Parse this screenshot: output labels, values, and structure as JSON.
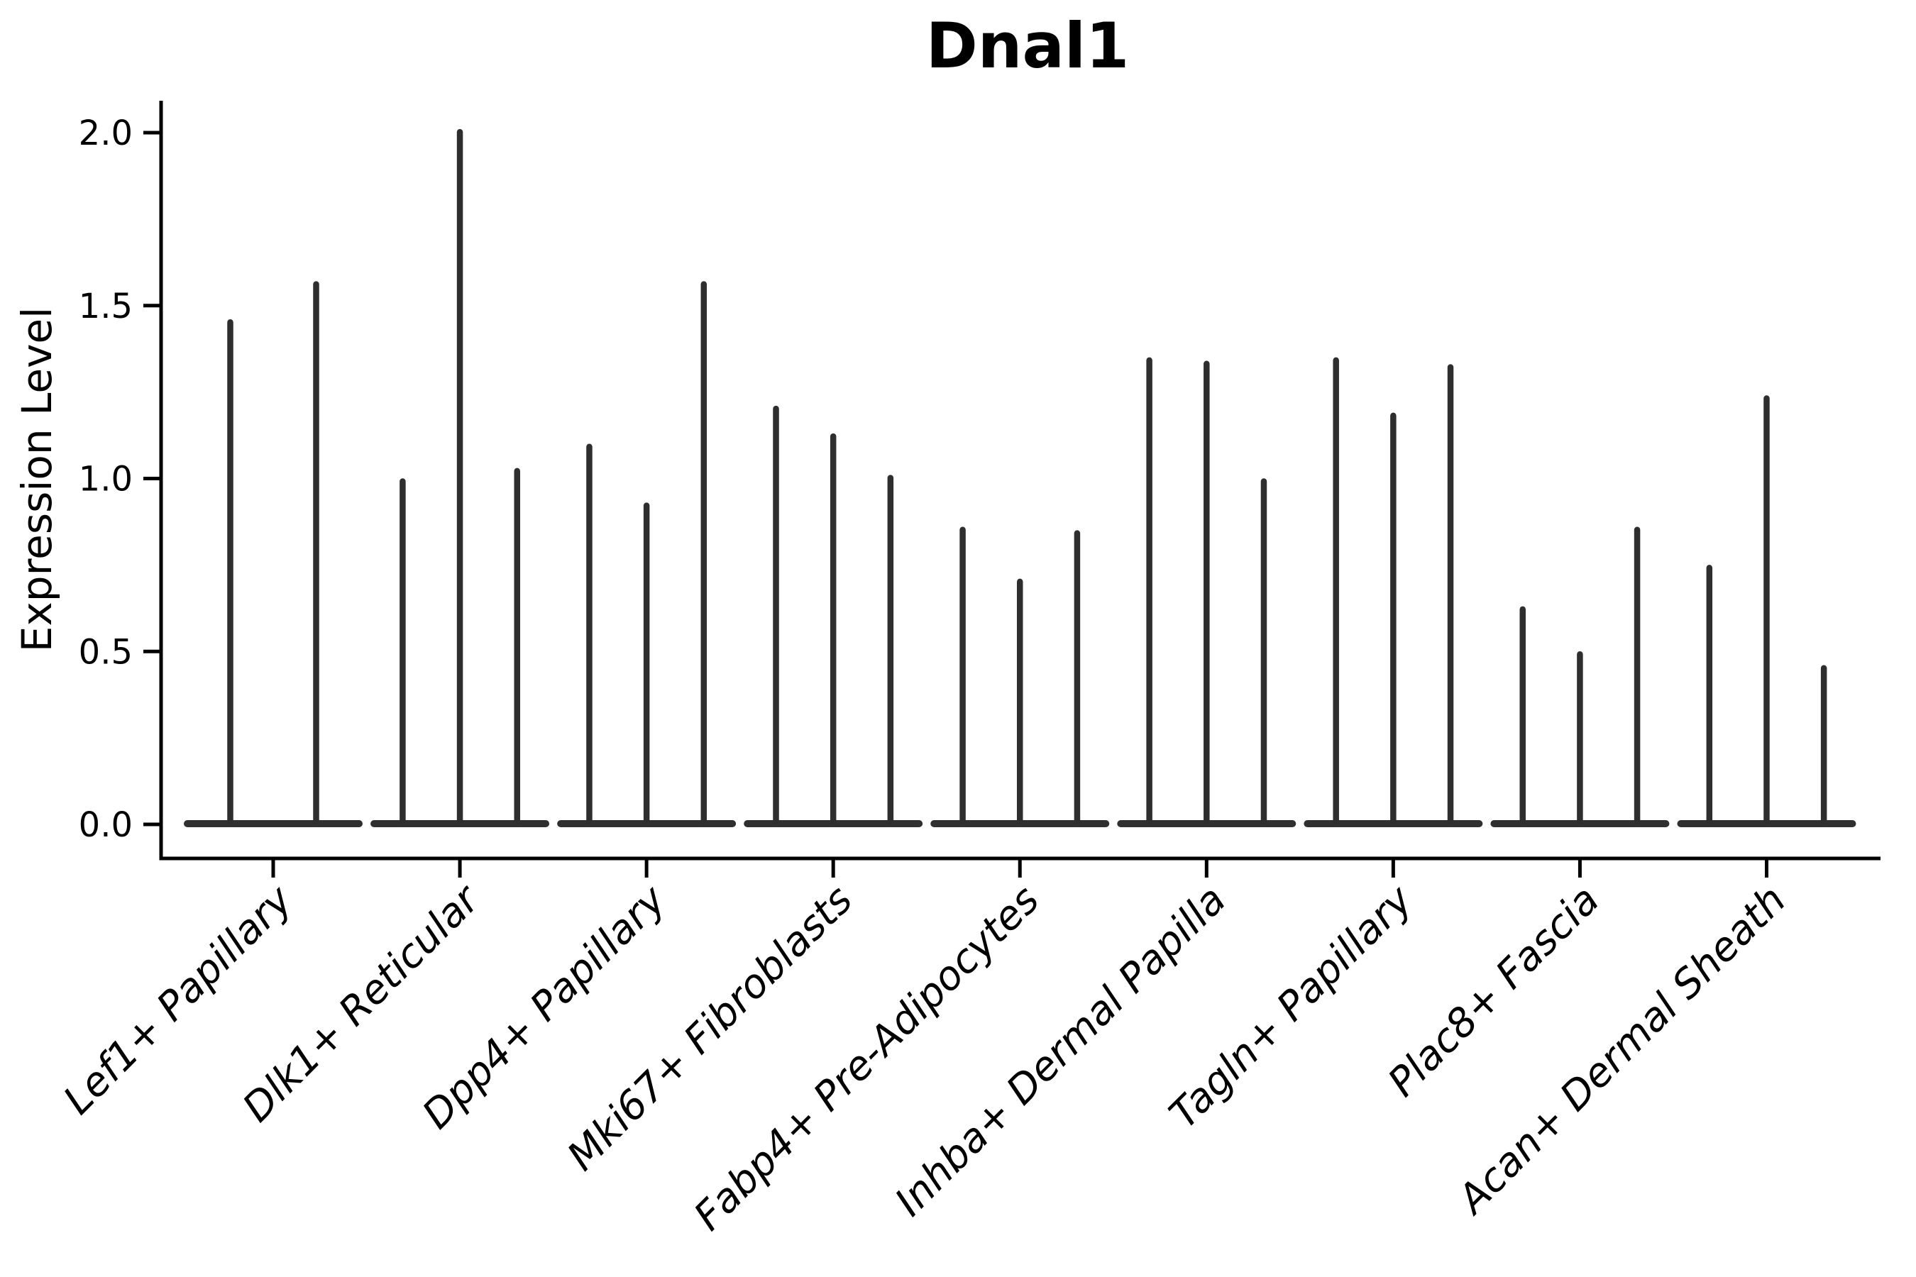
{
  "title": "Dnal1",
  "axes": {
    "y_label": "Expression Level",
    "y_tick_labels": [
      "0.0",
      "0.5",
      "1.0",
      "1.5",
      "2.0"
    ]
  },
  "style": {
    "violin_color": "#2e2e2e",
    "baseline_color": "#303030",
    "axis_color": "#000000",
    "background": "#ffffff"
  },
  "chart_data": {
    "type": "violin",
    "title": "Dnal1",
    "xlabel": "",
    "ylabel": "Expression Level",
    "ylim": [
      0,
      2.09
    ],
    "y_ticks": [
      0.0,
      0.5,
      1.0,
      1.5,
      2.0
    ],
    "grid": false,
    "legend": "none",
    "note": "Sparse single-cell expression violins: each category shows narrow dodged violins collapsed to a flat baseline at 0 with a thin spike up to the max expressing cells.",
    "categories": [
      "Lef1+ Papillary",
      "Dlk1+ Reticular",
      "Dpp4+ Papillary",
      "Mki67+ Fibroblasts",
      "Fabp4+ Pre-Adipocytes",
      "Inhba+ Dermal Papilla",
      "Tagln+ Papillary",
      "Plac8+ Fascia",
      "Acan+ Dermal Sheath"
    ],
    "groups": [
      {
        "category": "Lef1+ Papillary",
        "spike_maxima": [
          1.46,
          1.57
        ]
      },
      {
        "category": "Dlk1+ Reticular",
        "spike_maxima": [
          1.0,
          2.01,
          1.03
        ]
      },
      {
        "category": "Dpp4+ Papillary",
        "spike_maxima": [
          1.1,
          0.93,
          1.57
        ]
      },
      {
        "category": "Mki67+ Fibroblasts",
        "spike_maxima": [
          1.21,
          1.13,
          1.01
        ]
      },
      {
        "category": "Fabp4+ Pre-Adipocytes",
        "spike_maxima": [
          0.86,
          0.71,
          0.85
        ]
      },
      {
        "category": "Inhba+ Dermal Papilla",
        "spike_maxima": [
          1.35,
          1.34,
          1.0
        ]
      },
      {
        "category": "Tagln+ Papillary",
        "spike_maxima": [
          1.35,
          1.19,
          1.33
        ]
      },
      {
        "category": "Plac8+ Fascia",
        "spike_maxima": [
          0.63,
          0.5,
          0.86
        ]
      },
      {
        "category": "Acan+ Dermal Sheath",
        "spike_maxima": [
          0.75,
          1.24,
          0.46
        ]
      }
    ]
  }
}
